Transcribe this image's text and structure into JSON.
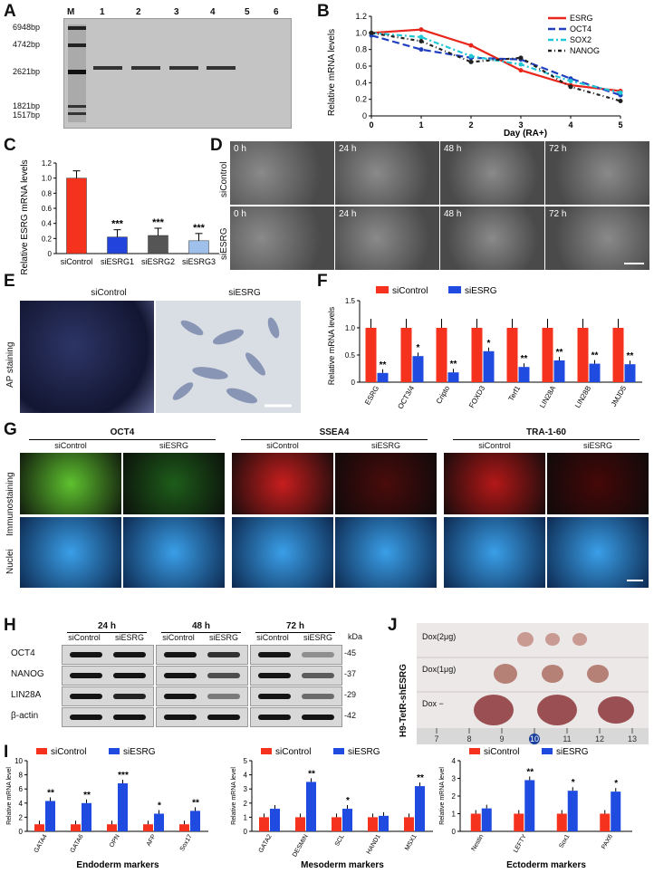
{
  "panels": {
    "A": {
      "letter": "A",
      "ladder_label": "M",
      "lanes": [
        "1",
        "2",
        "3",
        "4",
        "5",
        "6"
      ],
      "markers": [
        "6948bp",
        "4742bp",
        "2621bp",
        "1821bp",
        "1517bp"
      ]
    },
    "B": {
      "letter": "B",
      "chart_data": {
        "type": "line",
        "xlabel": "Day (RA+)",
        "ylabel": "Relative mRNA levels",
        "x": [
          0,
          1,
          2,
          3,
          4,
          5
        ],
        "xlim": [
          0,
          5
        ],
        "ylim": [
          0,
          1.2
        ],
        "yticks": [
          "0",
          "0.2",
          "0.4",
          "0.6",
          "0.8",
          "1.0",
          "1.2"
        ],
        "series": [
          {
            "name": "ESRG",
            "color": "#e8261c",
            "values": [
              1.0,
              1.04,
              0.85,
              0.55,
              0.37,
              0.3
            ]
          },
          {
            "name": "OCT4",
            "color": "#1f3fbf",
            "values": [
              0.97,
              0.8,
              0.7,
              0.68,
              0.45,
              0.25
            ]
          },
          {
            "name": "SOX2",
            "color": "#22c7d6",
            "values": [
              1.0,
              0.95,
              0.72,
              0.62,
              0.42,
              0.28
            ]
          },
          {
            "name": "NANOG",
            "color": "#222222",
            "values": [
              1.0,
              0.9,
              0.65,
              0.7,
              0.35,
              0.18
            ]
          }
        ],
        "legend": "top-right"
      }
    },
    "C": {
      "letter": "C",
      "chart_data": {
        "type": "bar",
        "ylabel": "Relative ESRG mRNA levels",
        "categories": [
          "siControl",
          "siESRG1",
          "siESRG2",
          "siESRG3"
        ],
        "values": [
          1.0,
          0.22,
          0.24,
          0.17
        ],
        "colors": [
          "#f5321e",
          "#2244dd",
          "#555555",
          "#9ec0ea"
        ],
        "significance": [
          "",
          "***",
          "***",
          "***"
        ],
        "ylim": [
          0,
          1.2
        ],
        "yticks": [
          "0",
          "0.2",
          "0.4",
          "0.6",
          "0.8",
          "1.0",
          "1.2"
        ]
      }
    },
    "D": {
      "letter": "D",
      "rows": [
        "siControl",
        "siESRG"
      ],
      "times": [
        "0 h",
        "24 h",
        "48 h",
        "72 h"
      ]
    },
    "E": {
      "letter": "E",
      "columns": [
        "siControl",
        "siESRG"
      ],
      "row_label": "AP staining"
    },
    "F": {
      "letter": "F",
      "chart_data": {
        "type": "bar",
        "ylabel": "Relative mRNA levels",
        "categories": [
          "ESRG",
          "OCT3/4",
          "Cripto",
          "FOXD3",
          "Terf1",
          "LIN28A",
          "LIN28B",
          "JMJD5"
        ],
        "series": [
          {
            "name": "siControl",
            "color": "#f5321e",
            "values": [
              1.0,
              1.0,
              1.0,
              1.0,
              1.0,
              1.0,
              1.0,
              1.0
            ]
          },
          {
            "name": "siESRG",
            "color": "#1f4be0",
            "values": [
              0.17,
              0.48,
              0.18,
              0.57,
              0.28,
              0.4,
              0.34,
              0.33
            ]
          }
        ],
        "significance": [
          "**",
          "*",
          "**",
          "*",
          "**",
          "**",
          "**",
          "**"
        ],
        "ylim": [
          0,
          1.5
        ],
        "yticks": [
          "0",
          "0.5",
          "1.0",
          "1.5"
        ]
      }
    },
    "G": {
      "letter": "G",
      "markers": [
        "OCT4",
        "SSEA4",
        "TRA-1-60"
      ],
      "columns": [
        "siControl",
        "siESRG"
      ],
      "rows": [
        "Immunostaining",
        "Nuclei"
      ]
    },
    "H": {
      "letter": "H",
      "times": [
        "24 h",
        "48 h",
        "72 h"
      ],
      "columns": [
        "siControl",
        "siESRG"
      ],
      "proteins": [
        "OCT4",
        "NANOG",
        "LIN28A",
        "β-actin"
      ],
      "kda_label": "kDa",
      "kda": [
        "45",
        "37",
        "29",
        "42"
      ]
    },
    "J": {
      "letter": "J",
      "vertical_label": "H9-TetR-shESRG",
      "rows": [
        "Dox(2μg)",
        "Dox(1μg)",
        "Dox −"
      ],
      "ruler": [
        "7",
        "8",
        "9",
        "10",
        "11",
        "12",
        "13"
      ]
    },
    "I": {
      "letter": "I",
      "legend": [
        "siControl",
        "siESRG"
      ],
      "charts": [
        {
          "type": "bar",
          "xlabel": "Endoderm markers",
          "ylabel": "Relative mRNA level",
          "categories": [
            "GATA4",
            "GATA6",
            "OPN",
            "AFP",
            "Sox17"
          ],
          "series": [
            {
              "name": "siControl",
              "values": [
                1.0,
                1.0,
                1.0,
                1.0,
                1.0
              ]
            },
            {
              "name": "siESRG",
              "values": [
                4.3,
                4.0,
                6.8,
                2.5,
                2.9
              ]
            }
          ],
          "significance": [
            "**",
            "**",
            "***",
            "*",
            "**"
          ],
          "ylim": [
            0,
            10
          ],
          "yticks": [
            "0",
            "2",
            "4",
            "6",
            "8",
            "10"
          ]
        },
        {
          "type": "bar",
          "xlabel": "Mesoderm markers",
          "ylabel": "Relative mRNA level",
          "categories": [
            "GATA2",
            "DESMIN",
            "SCL",
            "HAND1",
            "MSX1"
          ],
          "series": [
            {
              "name": "siControl",
              "values": [
                1.0,
                1.0,
                1.0,
                1.0,
                1.0
              ]
            },
            {
              "name": "siESRG",
              "values": [
                1.6,
                3.5,
                1.6,
                1.1,
                3.2
              ]
            }
          ],
          "significance": [
            "",
            "**",
            "*",
            "",
            "**"
          ],
          "ylim": [
            0,
            5
          ],
          "yticks": [
            "0",
            "1",
            "2",
            "3",
            "4",
            "5"
          ]
        },
        {
          "type": "bar",
          "xlabel": "Ectoderm markers",
          "ylabel": "Relative mRNA level",
          "categories": [
            "Nestin",
            "LEFTY",
            "Sox1",
            "PAX6"
          ],
          "series": [
            {
              "name": "siControl",
              "values": [
                1.0,
                1.0,
                1.0,
                1.0
              ]
            },
            {
              "name": "siESRG",
              "values": [
                1.3,
                2.9,
                2.3,
                2.25
              ]
            }
          ],
          "significance": [
            "",
            "**",
            "*",
            "*"
          ],
          "ylim": [
            0,
            4
          ],
          "yticks": [
            "0",
            "1",
            "2",
            "3",
            "4"
          ]
        }
      ]
    }
  },
  "colors": {
    "red": "#f5321e",
    "blue": "#1f4be0"
  }
}
